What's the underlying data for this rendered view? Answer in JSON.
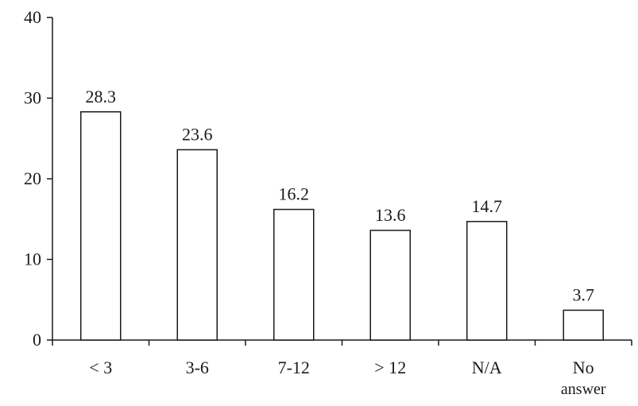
{
  "chart_data": {
    "type": "bar",
    "categories": [
      "< 3",
      "3-6",
      "7-12",
      "> 12",
      "N/A",
      "No answer"
    ],
    "category_lines": [
      [
        "< 3"
      ],
      [
        "3-6"
      ],
      [
        "7-12"
      ],
      [
        "> 12"
      ],
      [
        "N/A"
      ],
      [
        "No",
        "answer"
      ]
    ],
    "values": [
      28.3,
      23.6,
      16.2,
      13.6,
      14.7,
      3.7
    ],
    "data_labels": [
      "28.3",
      "23.6",
      "16.2",
      "13.6",
      "14.7",
      "3.7"
    ],
    "yticks": [
      0,
      10,
      20,
      30,
      40
    ],
    "ylim": [
      0,
      40
    ],
    "grid": false,
    "legend": "none",
    "bar_fill": "#ffffff",
    "bar_stroke": "#1a1a1a",
    "axis_color": "#1a1a1a"
  }
}
